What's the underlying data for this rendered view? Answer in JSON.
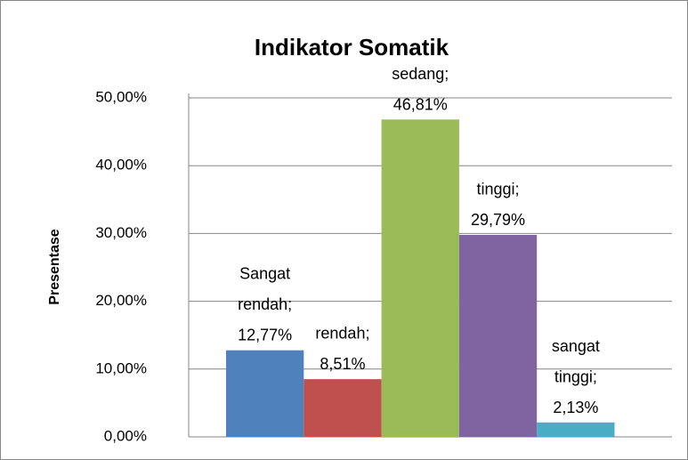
{
  "chart_data": {
    "type": "bar",
    "title": "Indikator Somatik",
    "ylabel": "Presentase",
    "values": [
      12.77,
      8.51,
      46.81,
      29.79,
      2.13
    ],
    "value_labels": [
      "Sangat rendah; 12,77%",
      "rendah; 8,51%",
      "sedang; 46,81%",
      "tinggi; 29,79%",
      "sangat tinggi; 2,13%"
    ],
    "colors": [
      "#4f81bd",
      "#c0504d",
      "#9bbb59",
      "#8064a2",
      "#4bacc6"
    ],
    "ylim": [
      0,
      50
    ],
    "yticks": [
      {
        "value": 0,
        "label": "0,00%"
      },
      {
        "value": 10,
        "label": "10,00%"
      },
      {
        "value": 20,
        "label": "20,00%"
      },
      {
        "value": 30,
        "label": "30,00%"
      },
      {
        "value": 40,
        "label": "40,00%"
      },
      {
        "value": 50,
        "label": "50,00%"
      }
    ],
    "grid": true
  }
}
